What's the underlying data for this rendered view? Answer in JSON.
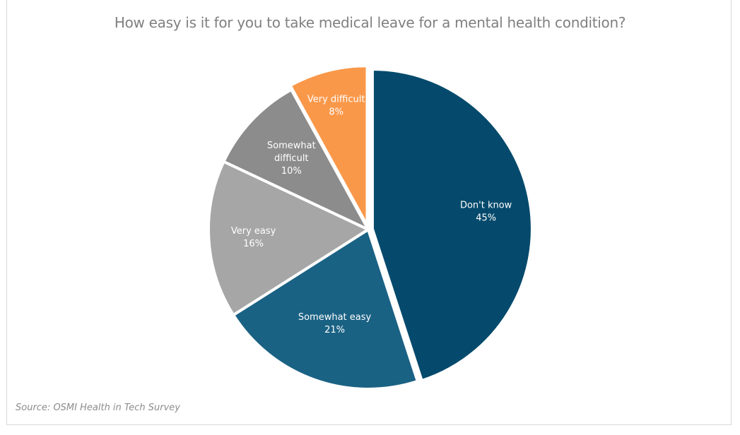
{
  "chart_data": {
    "type": "pie",
    "title": "How easy is it for you to take medical leave for a mental health condition?",
    "source": "Source: OSMI Health in Tech Survey",
    "slices": [
      {
        "label": "Don't know",
        "label_lines": [
          "Don't know"
        ],
        "value": 45,
        "display": "45%",
        "color": "#054a6c",
        "exploded": true
      },
      {
        "label": "Somewhat easy",
        "label_lines": [
          "Somewhat easy"
        ],
        "value": 21,
        "display": "21%",
        "color": "#1a6284",
        "exploded": false
      },
      {
        "label": "Very easy",
        "label_lines": [
          "Very easy"
        ],
        "value": 16,
        "display": "16%",
        "color": "#a6a6a6",
        "exploded": false
      },
      {
        "label": "Somewhat difficult",
        "label_lines": [
          "Somewhat",
          "difficult"
        ],
        "value": 10,
        "display": "10%",
        "color": "#8c8c8c",
        "exploded": false
      },
      {
        "label": "Very difficult",
        "label_lines": [
          "Very difficult"
        ],
        "value": 8,
        "display": "8%",
        "color": "#fa984a",
        "exploded": true
      }
    ]
  }
}
